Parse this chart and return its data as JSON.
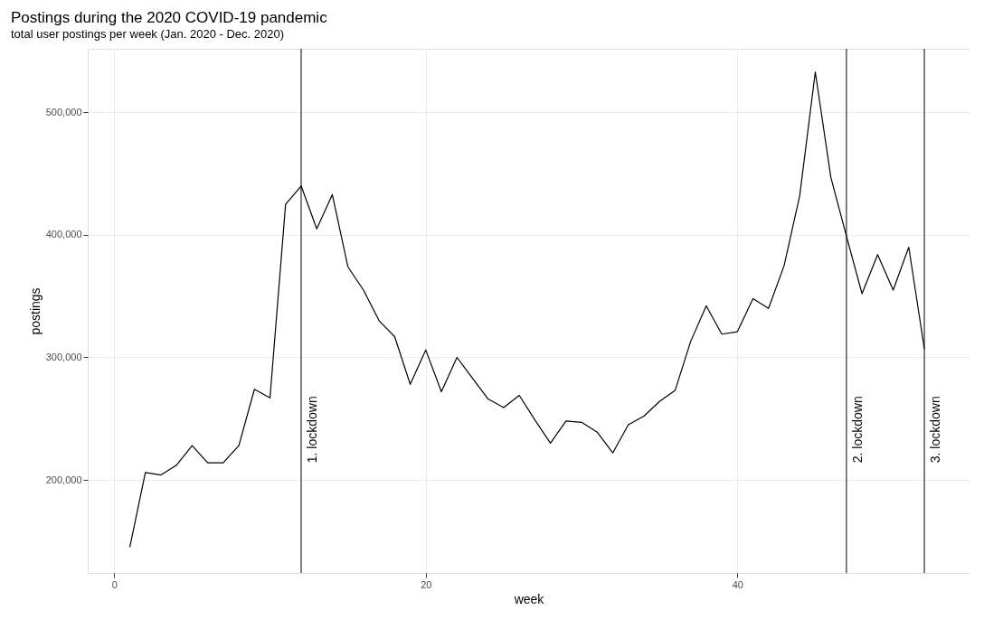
{
  "chart_data": {
    "type": "line",
    "title": "Postings during the 2020 COVID-19 pandemic",
    "subtitle": "total user postings per week (Jan. 2020 - Dec. 2020)",
    "xlabel": "week",
    "ylabel": "postings",
    "x": [
      1,
      2,
      3,
      4,
      5,
      6,
      7,
      8,
      9,
      10,
      11,
      12,
      13,
      14,
      15,
      16,
      17,
      18,
      19,
      20,
      21,
      22,
      23,
      24,
      25,
      26,
      27,
      28,
      29,
      30,
      31,
      32,
      33,
      34,
      35,
      36,
      37,
      38,
      39,
      40,
      41,
      42,
      43,
      44,
      45,
      46,
      47,
      48,
      49,
      50,
      51,
      52
    ],
    "series": [
      {
        "color": "#000000",
        "values": [
          145000,
          206000,
          204000,
          212000,
          228000,
          214000,
          214000,
          228000,
          274000,
          267000,
          425000,
          440000,
          405000,
          433000,
          374000,
          355000,
          330000,
          317000,
          278000,
          306000,
          272000,
          300000,
          283000,
          266000,
          259000,
          269000,
          249000,
          230000,
          248000,
          247000,
          239000,
          222000,
          245000,
          252000,
          264000,
          273000,
          313000,
          342000,
          319000,
          321000,
          348000,
          340000,
          375000,
          432000,
          533000,
          447000,
          399000,
          352000,
          384000,
          355000,
          390000,
          307000
        ]
      }
    ],
    "xlim": [
      -1.7,
      54.9
    ],
    "ylim": [
      124000,
      552000
    ],
    "xticks": [
      0,
      20,
      40
    ],
    "yticks": [
      {
        "value": 200000,
        "label": "200,000"
      },
      {
        "value": 300000,
        "label": "300,000"
      },
      {
        "value": 400000,
        "label": "400,000"
      },
      {
        "value": 500000,
        "label": "500,000"
      }
    ],
    "ref_lines": [
      {
        "axis": "x",
        "value": 12,
        "label": "1. lockdown",
        "color": "#000000"
      },
      {
        "axis": "x",
        "value": 47,
        "label": "2. lockdown",
        "color": "#000000"
      },
      {
        "axis": "x",
        "value": 52,
        "label": "3. lockdown",
        "color": "#000000"
      }
    ],
    "grid": true,
    "marker": "none",
    "line_style": "solid"
  }
}
